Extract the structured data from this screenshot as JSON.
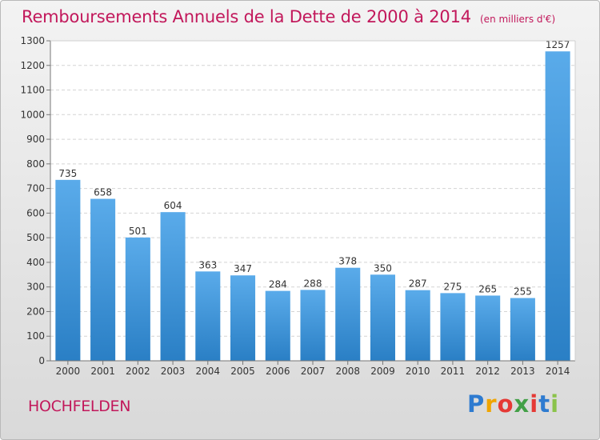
{
  "header": {
    "title": "Remboursements Annuels de la Dette de 2000 à 2014",
    "subtitle": "(en milliers d'€)"
  },
  "footer": {
    "commune": "HOCHFELDEN",
    "logo": [
      "P",
      "r",
      "o",
      "x",
      "i",
      "t",
      "i"
    ]
  },
  "colors": {
    "title": "#c2185b",
    "bar_top": "#5aabea",
    "bar_bottom": "#2a7fc5"
  },
  "chart_data": {
    "type": "bar",
    "title": "Remboursements Annuels de la Dette de 2000 à 2014",
    "subtitle": "(en milliers d'€)",
    "categories": [
      "2000",
      "2001",
      "2002",
      "2003",
      "2004",
      "2005",
      "2006",
      "2007",
      "2008",
      "2009",
      "2010",
      "2011",
      "2012",
      "2013",
      "2014"
    ],
    "values": [
      735,
      658,
      501,
      604,
      363,
      347,
      284,
      288,
      378,
      350,
      287,
      275,
      265,
      255,
      1257
    ],
    "ylim": [
      0,
      1300
    ],
    "yticks": [
      0,
      100,
      200,
      300,
      400,
      500,
      600,
      700,
      800,
      900,
      1000,
      1100,
      1200,
      1300
    ],
    "grid": true,
    "data_labels": true,
    "legend": "none"
  }
}
